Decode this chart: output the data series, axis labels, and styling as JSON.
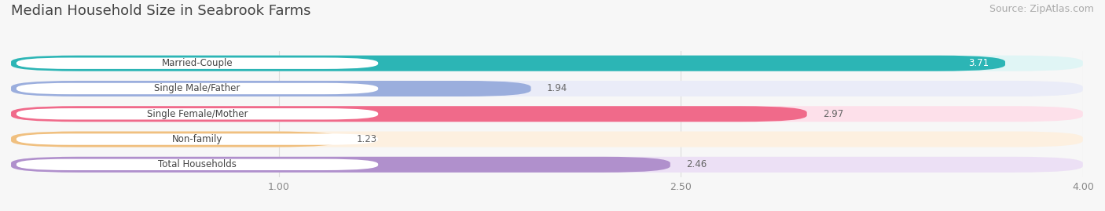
{
  "title": "Median Household Size in Seabrook Farms",
  "source": "Source: ZipAtlas.com",
  "categories": [
    "Married-Couple",
    "Single Male/Father",
    "Single Female/Mother",
    "Non-family",
    "Total Households"
  ],
  "values": [
    3.71,
    1.94,
    2.97,
    1.23,
    2.46
  ],
  "bar_colors": [
    "#2cb5b5",
    "#9baedd",
    "#f06a8a",
    "#f0c080",
    "#b090cc"
  ],
  "bar_bg_colors": [
    "#e0f5f5",
    "#eaecf8",
    "#fde0ea",
    "#fdf0e0",
    "#ece0f5"
  ],
  "value_colors": [
    "#ffffff",
    "#666666",
    "#ffffff",
    "#666666",
    "#666666"
  ],
  "xlim": [
    0.0,
    4.0
  ],
  "xticks": [
    1.0,
    2.5,
    4.0
  ],
  "background_color": "#f7f7f7",
  "title_fontsize": 13,
  "source_fontsize": 9,
  "bar_height": 0.62,
  "bar_gap": 1.0,
  "figsize": [
    14.06,
    2.69
  ],
  "dpi": 100
}
